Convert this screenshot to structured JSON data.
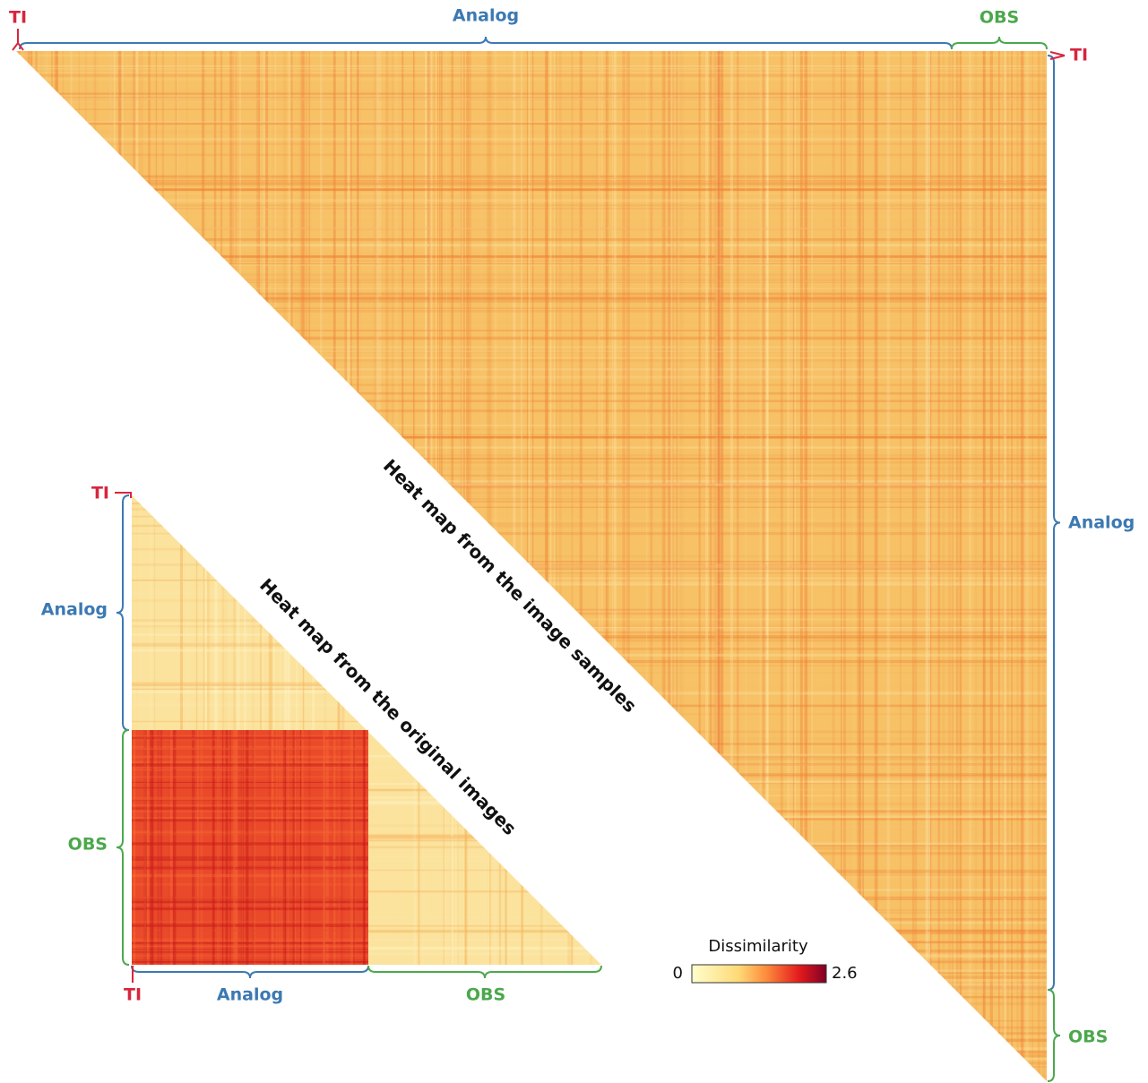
{
  "large_heatmap": {
    "title": "Heat map from the image samples",
    "top_labels": {
      "ti": "TI",
      "analog": "Analog",
      "obs": "OBS"
    },
    "right_labels": {
      "ti": "TI",
      "analog": "Analog",
      "obs": "OBS"
    }
  },
  "small_heatmap": {
    "title": "Heat map from the original images",
    "left_labels": {
      "ti": "TI",
      "analog": "Analog",
      "obs": "OBS"
    },
    "bottom_labels": {
      "ti": "TI",
      "analog": "Analog",
      "obs": "OBS"
    }
  },
  "colorbar": {
    "title": "Dissimilarity",
    "min": 0,
    "max": 2.6
  }
}
